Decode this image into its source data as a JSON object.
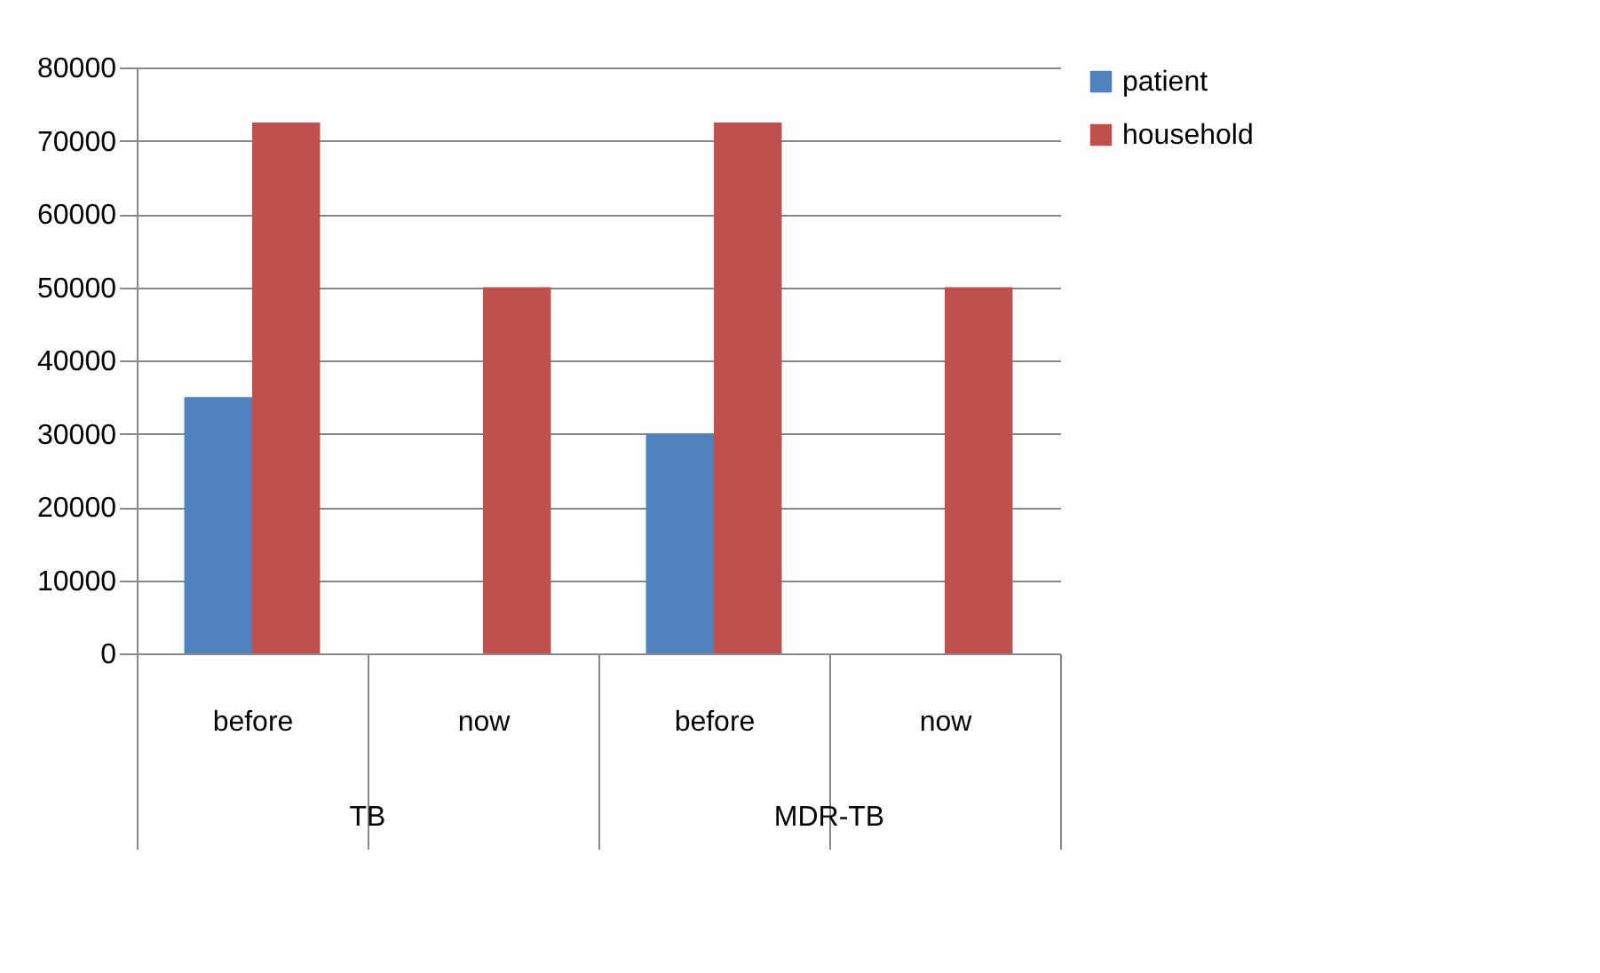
{
  "chart_data": {
    "type": "bar",
    "categories": [
      "before",
      "now",
      "before",
      "now"
    ],
    "series": [
      {
        "name": "patient",
        "color": "#4f81bd",
        "values": [
          35000,
          null,
          30000,
          null
        ]
      },
      {
        "name": "household",
        "color": "#c0504d",
        "values": [
          72500,
          50000,
          72500,
          50000
        ]
      }
    ],
    "annotations": [
      "TB",
      "MDR-TB"
    ],
    "ylim": [
      0,
      80000
    ],
    "yticks": [
      0,
      10000,
      20000,
      30000,
      40000,
      50000,
      60000,
      70000,
      80000
    ],
    "grid": "y",
    "legend": "right"
  }
}
